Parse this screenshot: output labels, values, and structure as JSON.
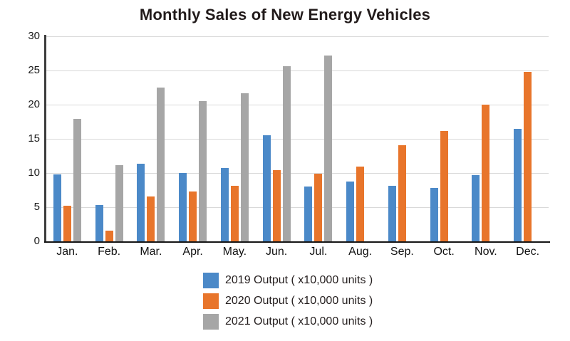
{
  "title": "Monthly Sales of New Energy Vehicles",
  "chart_data": {
    "type": "bar",
    "title": "Monthly Sales of New Energy Vehicles",
    "categories": [
      "Jan.",
      "Feb.",
      "Mar.",
      "Apr.",
      "May.",
      "Jun.",
      "Jul.",
      "Aug.",
      "Sep.",
      "Oct.",
      "Nov.",
      "Dec."
    ],
    "series": [
      {
        "name": "2019 Output ( x10,000 units )",
        "color": "#4b89c8",
        "values": [
          9.8,
          5.3,
          11.4,
          10.0,
          10.7,
          15.5,
          8.0,
          8.7,
          8.1,
          7.8,
          9.7,
          16.5
        ]
      },
      {
        "name": "2020 Output ( x10,000 units )",
        "color": "#e8752b",
        "values": [
          5.2,
          1.6,
          6.6,
          7.3,
          8.1,
          10.4,
          9.9,
          10.9,
          14.1,
          16.1,
          20.0,
          24.8
        ]
      },
      {
        "name": "2021 Output ( x10,000 units )",
        "color": "#a6a6a6",
        "values": [
          17.9,
          11.1,
          22.5,
          20.5,
          21.7,
          25.6,
          27.2,
          null,
          null,
          null,
          null,
          null
        ]
      }
    ],
    "ylim": [
      0,
      30
    ],
    "yticks": [
      0,
      5,
      10,
      15,
      20,
      25,
      30
    ],
    "xlabel": "",
    "ylabel": "",
    "grid": true,
    "legend_position": "bottom-center",
    "axis_color": "#3d3d3d",
    "gridline_color": "#d9d9d9"
  }
}
